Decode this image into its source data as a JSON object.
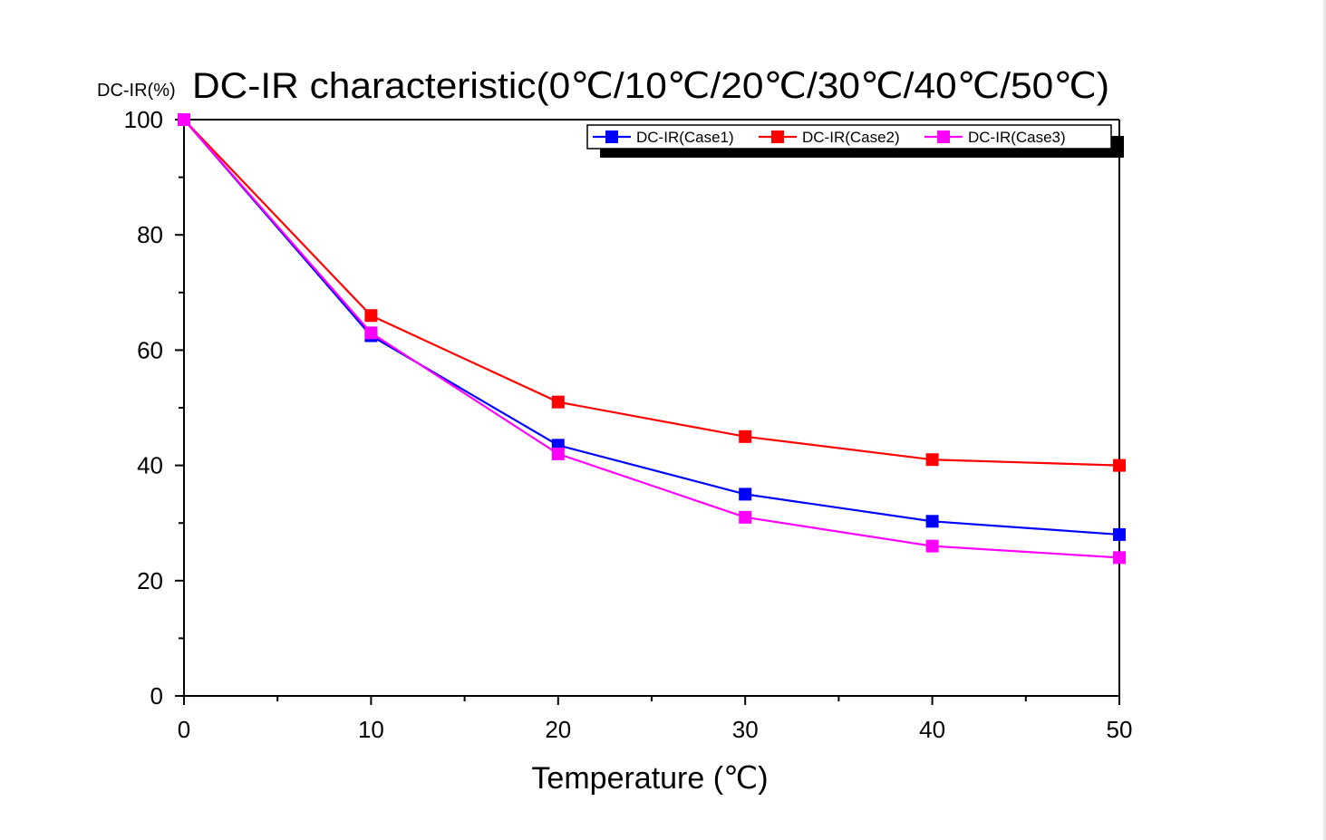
{
  "chart_data": {
    "type": "line",
    "title": "DC-IR characteristic(0℃/10℃/20℃/30℃/40℃/50℃)",
    "ylabel": "DC-IR(%)",
    "xlabel": "Temperature (℃)",
    "x": [
      0,
      10,
      20,
      30,
      40,
      50
    ],
    "xlim": [
      0,
      50
    ],
    "ylim": [
      0,
      100
    ],
    "xticks": [
      0,
      10,
      20,
      30,
      40,
      50
    ],
    "yticks": [
      0,
      20,
      40,
      60,
      80,
      100
    ],
    "grid": false,
    "legend_position": "top-right",
    "series": [
      {
        "name": "DC-IR(Case1)",
        "color": "#0000ff",
        "values": [
          100,
          62.5,
          43.5,
          35,
          30.3,
          28
        ]
      },
      {
        "name": "DC-IR(Case2)",
        "color": "#ff0000",
        "values": [
          100,
          66,
          51,
          45,
          41,
          40
        ]
      },
      {
        "name": "DC-IR(Case3)",
        "color": "#ff00ff",
        "values": [
          100,
          63,
          42,
          31,
          26,
          24
        ]
      }
    ]
  }
}
